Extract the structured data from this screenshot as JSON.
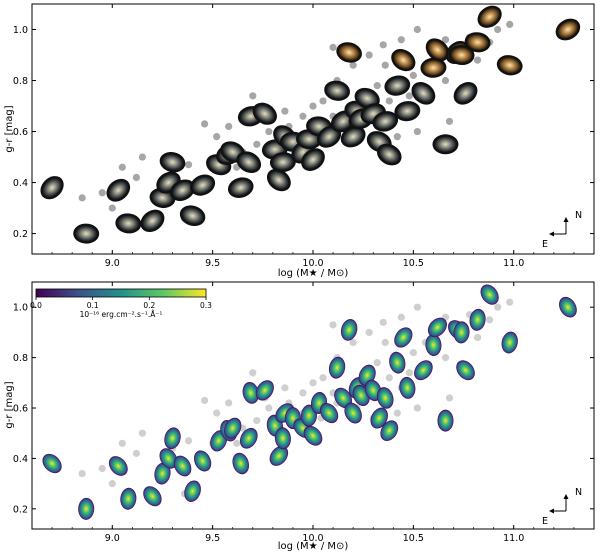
{
  "chart_data": [
    {
      "type": "scatter",
      "variant": "galaxy-color-cutouts",
      "xlabel": "log (M★ / M⊙)",
      "ylabel": "g-r [mag]",
      "xlim": [
        8.6,
        11.4
      ],
      "ylim": [
        0.12,
        1.1
      ],
      "xticks": [
        "9.0",
        "9.5",
        "10.0",
        "10.5",
        "11.0"
      ],
      "yticks": [
        "0.2",
        "0.4",
        "0.6",
        "0.8",
        "1.0"
      ],
      "compass": {
        "north": "N",
        "east": "E"
      },
      "background_points": [
        [
          9.12,
          0.42
        ],
        [
          9.25,
          0.36
        ],
        [
          9.43,
          0.39
        ],
        [
          9.5,
          0.46
        ],
        [
          9.65,
          0.52
        ],
        [
          9.72,
          0.55
        ],
        [
          9.83,
          0.58
        ],
        [
          9.88,
          0.62
        ],
        [
          9.95,
          0.66
        ],
        [
          10.05,
          0.72
        ],
        [
          10.12,
          0.8
        ],
        [
          10.2,
          0.86
        ],
        [
          10.28,
          0.9
        ],
        [
          10.32,
          0.78
        ],
        [
          10.36,
          0.86
        ],
        [
          10.38,
          0.72
        ],
        [
          10.48,
          0.74
        ],
        [
          10.5,
          0.82
        ],
        [
          10.56,
          0.86
        ],
        [
          10.62,
          0.9
        ],
        [
          10.66,
          0.8
        ],
        [
          10.72,
          0.93
        ],
        [
          10.78,
          0.97
        ],
        [
          10.82,
          0.88
        ],
        [
          10.88,
          0.95
        ],
        [
          10.92,
          1.0
        ],
        [
          10.98,
          1.02
        ],
        [
          9.52,
          0.58
        ],
        [
          9.58,
          0.62
        ],
        [
          9.76,
          0.64
        ],
        [
          9.86,
          0.68
        ],
        [
          10.0,
          0.7
        ],
        [
          10.1,
          0.66
        ],
        [
          10.26,
          0.7
        ],
        [
          10.34,
          0.66
        ],
        [
          10.44,
          0.68
        ],
        [
          8.95,
          0.36
        ],
        [
          9.05,
          0.46
        ],
        [
          9.15,
          0.5
        ],
        [
          9.3,
          0.44
        ],
        [
          9.7,
          0.74
        ],
        [
          10.1,
          0.93
        ],
        [
          10.35,
          0.94
        ],
        [
          10.44,
          0.96
        ],
        [
          10.52,
          1.0
        ],
        [
          10.66,
          0.96
        ],
        [
          9.0,
          0.3
        ],
        [
          9.38,
          0.47
        ],
        [
          9.62,
          0.46
        ],
        [
          9.78,
          0.6
        ],
        [
          9.95,
          0.58
        ],
        [
          10.04,
          0.56
        ],
        [
          10.22,
          0.6
        ],
        [
          10.42,
          0.58
        ],
        [
          10.52,
          0.6
        ],
        [
          10.36,
          0.63
        ],
        [
          9.2,
          0.24
        ],
        [
          9.36,
          0.26
        ],
        [
          8.85,
          0.34
        ],
        [
          9.46,
          0.63
        ],
        [
          10.68,
          0.64
        ],
        [
          10.12,
          0.62
        ],
        [
          10.3,
          0.56
        ]
      ],
      "galaxy_points": [
        [
          8.7,
          0.38
        ],
        [
          8.87,
          0.2
        ],
        [
          9.03,
          0.37
        ],
        [
          9.08,
          0.24
        ],
        [
          9.2,
          0.25
        ],
        [
          9.25,
          0.34
        ],
        [
          9.28,
          0.4
        ],
        [
          9.3,
          0.48
        ],
        [
          9.35,
          0.37
        ],
        [
          9.4,
          0.27
        ],
        [
          9.45,
          0.39
        ],
        [
          9.53,
          0.47
        ],
        [
          9.58,
          0.51
        ],
        [
          9.6,
          0.52
        ],
        [
          9.64,
          0.38
        ],
        [
          9.68,
          0.48
        ],
        [
          9.69,
          0.66
        ],
        [
          9.76,
          0.67
        ],
        [
          9.81,
          0.53
        ],
        [
          9.83,
          0.41
        ],
        [
          9.85,
          0.48
        ],
        [
          9.86,
          0.58
        ],
        [
          9.9,
          0.56
        ],
        [
          9.95,
          0.52
        ],
        [
          9.98,
          0.57
        ],
        [
          10.0,
          0.49
        ],
        [
          10.03,
          0.62
        ],
        [
          10.08,
          0.58
        ],
        [
          10.12,
          0.76
        ],
        [
          10.15,
          0.64
        ],
        [
          10.18,
          0.91
        ],
        [
          10.2,
          0.58
        ],
        [
          10.22,
          0.68
        ],
        [
          10.24,
          0.65
        ],
        [
          10.27,
          0.73
        ],
        [
          10.3,
          0.67
        ],
        [
          10.33,
          0.56
        ],
        [
          10.36,
          0.64
        ],
        [
          10.38,
          0.51
        ],
        [
          10.42,
          0.78
        ],
        [
          10.45,
          0.88
        ],
        [
          10.47,
          0.68
        ],
        [
          10.55,
          0.75
        ],
        [
          10.6,
          0.85
        ],
        [
          10.62,
          0.92
        ],
        [
          10.66,
          0.55
        ],
        [
          10.72,
          0.91
        ],
        [
          10.74,
          0.9
        ],
        [
          10.76,
          0.75
        ],
        [
          10.82,
          0.95
        ],
        [
          10.88,
          1.05
        ],
        [
          10.98,
          0.86
        ],
        [
          11.27,
          1.0
        ]
      ]
    },
    {
      "type": "scatter",
      "variant": "galaxy-flux-maps",
      "xlabel": "log (M★ / M⊙)",
      "ylabel": "g-r [mag]",
      "xlim": [
        8.6,
        11.4
      ],
      "ylim": [
        0.12,
        1.1
      ],
      "xticks": [
        "9.0",
        "9.5",
        "10.0",
        "10.5",
        "11.0"
      ],
      "yticks": [
        "0.2",
        "0.4",
        "0.6",
        "0.8",
        "1.0"
      ],
      "compass": {
        "north": "N",
        "east": "E"
      },
      "colorbar": {
        "colormap": "viridis",
        "range": [
          0.0,
          0.3
        ],
        "ticks": [
          "0.0",
          "0.1",
          "0.2",
          "0.3"
        ],
        "label": "10⁻¹⁶ erg.cm⁻².s⁻¹.Å⁻¹"
      }
    }
  ]
}
